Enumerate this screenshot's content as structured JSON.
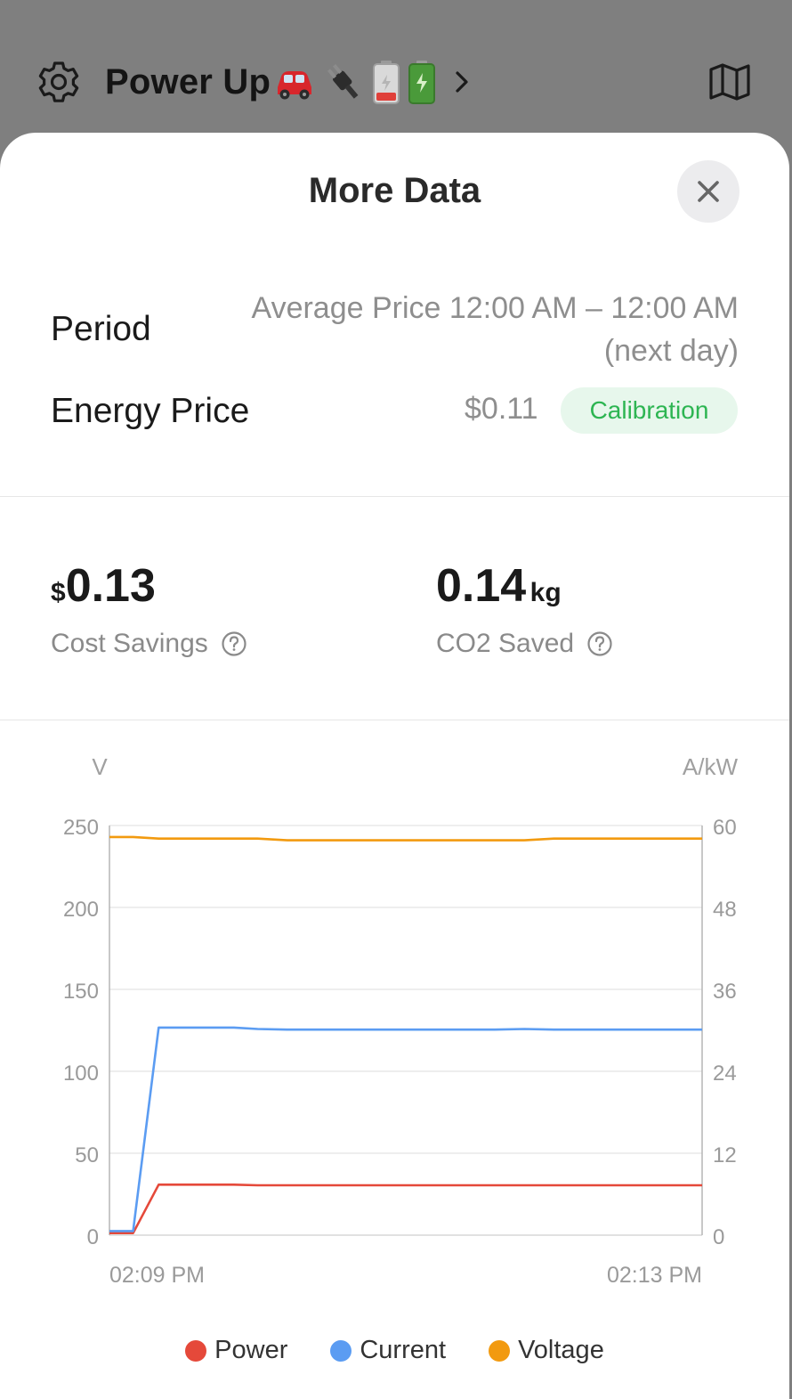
{
  "app": {
    "title": "Power Up",
    "title_emojis": [
      "car-emoji",
      "plug-emoji",
      "low-battery-emoji",
      "full-battery-emoji"
    ]
  },
  "header": {
    "left_icon": "gear-icon",
    "right_icon": "map-icon",
    "title_chevron": "chevron-right-icon"
  },
  "sheet": {
    "title": "More Data",
    "close_icon": "close-icon",
    "period": {
      "label": "Period",
      "value_line1": "Average Price 12:00 AM – 12:00 AM",
      "value_line2": "(next day)"
    },
    "energy_price": {
      "label": "Energy Price",
      "value": "$0.11",
      "badge": "Calibration"
    },
    "stats": {
      "cost": {
        "currency": "$",
        "value": "0.13",
        "label": "Cost Savings"
      },
      "co2": {
        "value": "0.14",
        "unit": "kg",
        "label": "CO2 Saved"
      }
    }
  },
  "colors": {
    "power": "#e5493a",
    "current": "#5b9cf2",
    "voltage": "#f29a0f",
    "badge_bg": "#e7f7ec",
    "badge_text": "#2db552"
  },
  "chart_data": {
    "type": "line",
    "left_unit": "V",
    "right_unit": "A/kW",
    "left_ticks": [
      "250",
      "200",
      "150",
      "100",
      "50",
      "0"
    ],
    "right_ticks": [
      "60",
      "48",
      "36",
      "24",
      "12",
      "0"
    ],
    "ylim_left": [
      0,
      250
    ],
    "ylim_right": [
      0,
      60
    ],
    "x_tick_labels": [
      "02:09 PM",
      "02:13 PM"
    ],
    "grid": true,
    "legend": "bottom-center",
    "x": [
      0,
      0.04,
      0.083,
      0.21,
      0.25,
      0.3,
      0.5,
      0.65,
      0.7,
      0.75,
      1.0
    ],
    "series": [
      {
        "name": "Power",
        "axis": "right",
        "values": [
          0.3,
          0.3,
          7.4,
          7.4,
          7.3,
          7.3,
          7.3,
          7.3,
          7.3,
          7.3,
          7.3
        ]
      },
      {
        "name": "Current",
        "axis": "right",
        "values": [
          0.6,
          0.6,
          30.4,
          30.4,
          30.2,
          30.1,
          30.1,
          30.1,
          30.2,
          30.1,
          30.1
        ]
      },
      {
        "name": "Voltage",
        "axis": "left",
        "values": [
          243,
          243,
          242,
          242,
          242,
          241,
          241,
          241,
          241,
          242,
          242
        ]
      }
    ]
  },
  "legend": [
    {
      "label": "Power",
      "color": "#e5493a"
    },
    {
      "label": "Current",
      "color": "#5b9cf2"
    },
    {
      "label": "Voltage",
      "color": "#f29a0f"
    }
  ]
}
